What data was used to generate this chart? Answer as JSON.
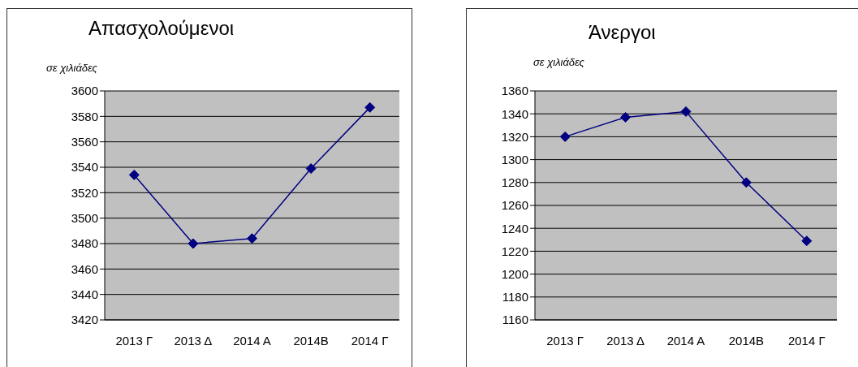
{
  "chart_data": [
    {
      "type": "line",
      "title": "Απασχολούμενοι",
      "ylabel": "σε χιλιάδες",
      "categories": [
        "2013 Γ",
        "2013 Δ",
        "2014 Α",
        "2014Β",
        "2014 Γ"
      ],
      "series": [
        {
          "color": "#000080",
          "values": [
            3534,
            3480,
            3484,
            3539,
            3587
          ]
        }
      ],
      "ylim": [
        3420,
        3600
      ],
      "yticks": [
        3420,
        3440,
        3460,
        3480,
        3500,
        3520,
        3540,
        3560,
        3580,
        3600
      ],
      "grid": "y",
      "marker": "diamond",
      "line_style": "solid"
    },
    {
      "type": "line",
      "title": "Άνεργοι",
      "ylabel": "σε χιλιάδες",
      "categories": [
        "2013 Γ",
        "2013 Δ",
        "2014 Α",
        "2014Β",
        "2014 Γ"
      ],
      "series": [
        {
          "color": "#000080",
          "values": [
            1320,
            1337,
            1342,
            1280,
            1229
          ]
        }
      ],
      "ylim": [
        1160,
        1360
      ],
      "yticks": [
        1160,
        1180,
        1200,
        1220,
        1240,
        1260,
        1280,
        1300,
        1320,
        1340,
        1360
      ],
      "grid": "y",
      "marker": "diamond",
      "line_style": "solid"
    }
  ]
}
